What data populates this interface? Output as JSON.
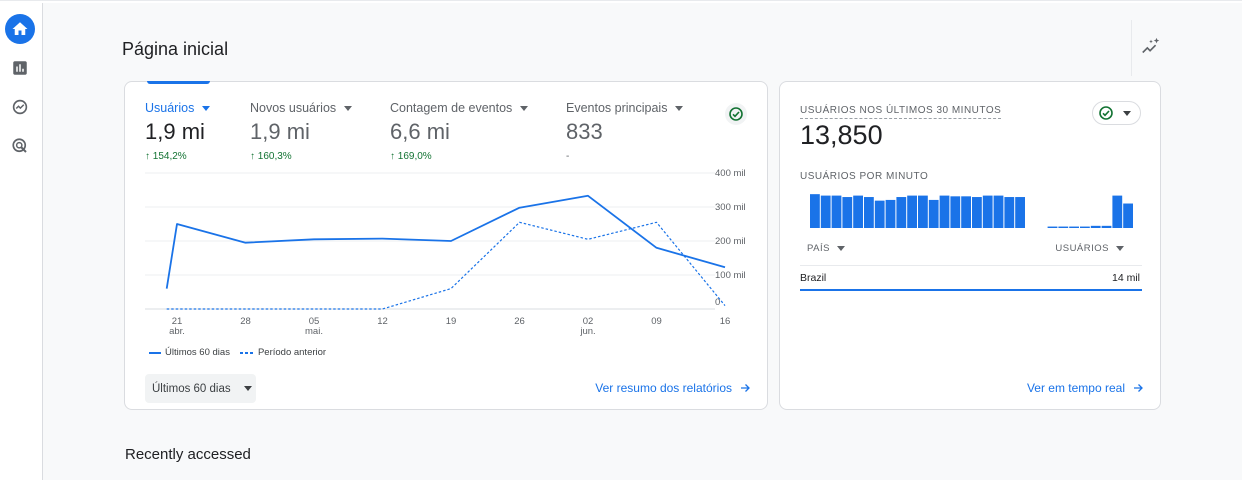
{
  "page": {
    "title": "Página inicial",
    "section_recent": "Recently accessed"
  },
  "icons": {
    "nav": [
      "home-icon",
      "reports-icon",
      "explore-icon",
      "advertising-icon"
    ],
    "insights": "insights-sparkle-icon"
  },
  "colors": {
    "accent": "#1a73e8",
    "positive": "#137333",
    "bar": "#1a73e8"
  },
  "overview": {
    "metrics": [
      {
        "label": "Usuários",
        "value": "1,9 mi",
        "change": "154,2%",
        "selected": true
      },
      {
        "label": "Novos usuários",
        "value": "1,9 mi",
        "change": "160,3%",
        "selected": false
      },
      {
        "label": "Contagem de eventos",
        "value": "6,6 mi",
        "change": "169,0%",
        "selected": false
      },
      {
        "label": "Eventos principais",
        "value": "833",
        "change": "-",
        "selected": false
      }
    ],
    "legend": {
      "current": "Últimos 60 dias",
      "previous": "Período anterior"
    },
    "range_button": "Últimos 60 dias",
    "link": "Ver resumo dos relatórios"
  },
  "chart_data": {
    "type": "line",
    "x": [
      "21",
      "28",
      "05",
      "12",
      "19",
      "26",
      "02",
      "09",
      "16"
    ],
    "x_sublabels": [
      "abr.",
      "",
      "mai.",
      "",
      "",
      "",
      "jun.",
      "",
      ""
    ],
    "yticks": [
      "0",
      "100 mil",
      "200 mil",
      "300 mil",
      "400 mil"
    ],
    "ylim": [
      0,
      400
    ],
    "grid": true,
    "legend_position": "bottom-left",
    "series": [
      {
        "name": "Últimos 60 dias",
        "style": "solid",
        "points": [
          [
            -0.15,
            60
          ],
          [
            0,
            250
          ],
          [
            1,
            195
          ],
          [
            2,
            205
          ],
          [
            3,
            207
          ],
          [
            4,
            200
          ],
          [
            5,
            298
          ],
          [
            6,
            333
          ],
          [
            7,
            180
          ],
          [
            8,
            123
          ]
        ]
      },
      {
        "name": "Período anterior",
        "style": "dashed",
        "points": [
          [
            -0.15,
            0
          ],
          [
            0,
            0
          ],
          [
            1,
            0
          ],
          [
            2,
            0
          ],
          [
            3,
            0
          ],
          [
            4,
            60
          ],
          [
            5,
            255
          ],
          [
            6,
            205
          ],
          [
            7,
            255
          ],
          [
            8,
            10
          ]
        ]
      }
    ]
  },
  "realtime": {
    "title": "USUÁRIOS NOS ÚLTIMOS 30 MINUTOS",
    "value": "13,850",
    "subtitle": "USUÁRIOS POR MINUTO",
    "per_minute": [
      0.94,
      0.9,
      0.9,
      0.86,
      0.9,
      0.86,
      0.76,
      0.78,
      0.86,
      0.9,
      0.9,
      0.78,
      0.9,
      0.88,
      0.88,
      0.86,
      0.9,
      0.9,
      0.86,
      0.86,
      0,
      0,
      0.04,
      0.04,
      0.04,
      0.04,
      0.06,
      0.06,
      0.9,
      0.68
    ],
    "col_country": "PAÍS",
    "col_users": "USUÁRIOS",
    "rows": [
      {
        "country": "Brazil",
        "users": "14 mil"
      }
    ],
    "link": "Ver em tempo real"
  }
}
